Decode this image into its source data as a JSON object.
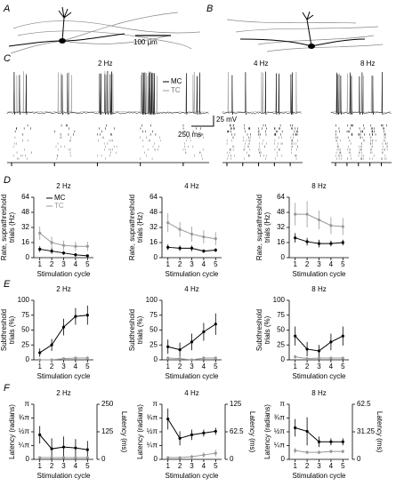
{
  "panel_labels": [
    "A",
    "B",
    "C",
    "D",
    "E",
    "F"
  ],
  "scale_bar_a": "100 μm",
  "panel_c": {
    "titles": [
      "2 Hz",
      "4 Hz",
      "8 Hz"
    ],
    "legend": [
      "MC",
      "TC"
    ],
    "scale_v": "25 mV",
    "scale_t": "250 ms"
  },
  "chart_data": [
    {
      "type": "line",
      "title": "2 Hz",
      "x_label": "Stimulation cycle",
      "y_label": [
        "Rate, suprathreshold",
        "trials (Hz)"
      ],
      "x": [
        1,
        2,
        3,
        4,
        5
      ],
      "xlim": [
        0.5,
        5.5
      ],
      "xticks": [
        1,
        2,
        3,
        4,
        5
      ],
      "ylim": [
        0,
        64
      ],
      "yticks": [
        0,
        16,
        32,
        48,
        64
      ],
      "legend": true,
      "series": [
        {
          "name": "MC",
          "color": "#000000",
          "values": [
            9,
            7,
            5,
            3,
            2
          ],
          "errors": [
            3,
            3,
            2,
            2,
            1
          ]
        },
        {
          "name": "TC",
          "color": "#999999",
          "values": [
            26,
            16,
            13,
            12,
            12
          ],
          "errors": [
            7,
            6,
            5,
            5,
            5
          ]
        }
      ]
    },
    {
      "type": "line",
      "title": "4 Hz",
      "x_label": "Stimulation cycle",
      "y_label": [
        "Rate, suprathreshold",
        "trials (Hz)"
      ],
      "x": [
        1,
        2,
        3,
        4,
        5
      ],
      "xlim": [
        0.5,
        5.5
      ],
      "xticks": [
        1,
        2,
        3,
        4,
        5
      ],
      "ylim": [
        0,
        64
      ],
      "yticks": [
        0,
        16,
        32,
        48,
        64
      ],
      "legend": false,
      "series": [
        {
          "color": "#000000",
          "values": [
            11,
            10,
            10,
            7,
            8
          ],
          "errors": [
            3,
            3,
            3,
            2,
            2
          ]
        },
        {
          "color": "#999999",
          "values": [
            37,
            30,
            25,
            22,
            20
          ],
          "errors": [
            10,
            8,
            8,
            7,
            7
          ]
        }
      ]
    },
    {
      "type": "line",
      "title": "8 Hz",
      "x_label": "Stimulation cycle",
      "y_label": [
        "Rate, suprathreshold",
        "trials (Hz)"
      ],
      "x": [
        1,
        2,
        3,
        4,
        5
      ],
      "xlim": [
        0.5,
        5.5
      ],
      "xticks": [
        1,
        2,
        3,
        4,
        5
      ],
      "ylim": [
        0,
        64
      ],
      "yticks": [
        0,
        16,
        32,
        48,
        64
      ],
      "legend": false,
      "series": [
        {
          "color": "#000000",
          "values": [
            21,
            17,
            15,
            15,
            16
          ],
          "errors": [
            5,
            4,
            4,
            3,
            3
          ]
        },
        {
          "color": "#999999",
          "values": [
            46,
            46,
            40,
            34,
            33
          ],
          "errors": [
            12,
            14,
            10,
            9,
            9
          ]
        }
      ]
    },
    {
      "type": "line",
      "title": "2 Hz",
      "x_label": "Stimulation cycle",
      "y_label": [
        "Subthreshold",
        "trials (%)"
      ],
      "x": [
        1,
        2,
        3,
        4,
        5
      ],
      "xlim": [
        0.5,
        5.5
      ],
      "xticks": [
        1,
        2,
        3,
        4,
        5
      ],
      "ylim": [
        0,
        100
      ],
      "yticks": [
        0,
        25,
        50,
        75,
        100
      ],
      "legend": false,
      "series": [
        {
          "color": "#000000",
          "values": [
            12,
            25,
            55,
            73,
            75
          ],
          "errors": [
            7,
            10,
            14,
            14,
            16
          ]
        },
        {
          "color": "#999999",
          "values": [
            0,
            0,
            2,
            3,
            3
          ],
          "errors": [
            0,
            0,
            2,
            3,
            3
          ]
        }
      ]
    },
    {
      "type": "line",
      "title": "4 Hz",
      "x_label": "Stimulation cycle",
      "y_label": [
        "Subthreshold",
        "trials (%)"
      ],
      "x": [
        1,
        2,
        3,
        4,
        5
      ],
      "xlim": [
        0.5,
        5.5
      ],
      "xticks": [
        1,
        2,
        3,
        4,
        5
      ],
      "ylim": [
        0,
        100
      ],
      "yticks": [
        0,
        25,
        50,
        75,
        100
      ],
      "legend": false,
      "series": [
        {
          "color": "#000000",
          "values": [
            22,
            17,
            30,
            47,
            60
          ],
          "errors": [
            12,
            12,
            14,
            15,
            18
          ]
        },
        {
          "color": "#999999",
          "values": [
            3,
            2,
            0,
            3,
            3
          ],
          "errors": [
            3,
            2,
            0,
            3,
            3
          ]
        }
      ]
    },
    {
      "type": "line",
      "title": "8 Hz",
      "x_label": "Stimulation cycle",
      "y_label": [
        "Subthreshold",
        "trials (%)"
      ],
      "x": [
        1,
        2,
        3,
        4,
        5
      ],
      "xlim": [
        0.5,
        5.5
      ],
      "xticks": [
        1,
        2,
        3,
        4,
        5
      ],
      "ylim": [
        0,
        100
      ],
      "yticks": [
        0,
        25,
        50,
        75,
        100
      ],
      "legend": false,
      "series": [
        {
          "color": "#000000",
          "values": [
            40,
            18,
            15,
            30,
            40
          ],
          "errors": [
            16,
            12,
            10,
            14,
            16
          ]
        },
        {
          "color": "#999999",
          "values": [
            5,
            2,
            3,
            3,
            3
          ],
          "errors": [
            3,
            2,
            2,
            2,
            2
          ]
        }
      ]
    },
    {
      "type": "line",
      "title": "2 Hz",
      "x_label": "Stimulation cycle",
      "y_label": [
        "Latency (radians)"
      ],
      "y2_label": "Latency (ms)",
      "x": [
        1,
        2,
        3,
        4,
        5
      ],
      "xlim": [
        0.5,
        5.5
      ],
      "xticks": [
        1,
        2,
        3,
        4,
        5
      ],
      "ylim": [
        0,
        3.1416
      ],
      "yticks": [
        0,
        {
          "value": 0.7854,
          "label": "¼π"
        },
        {
          "value": 1.5708,
          "label": "½π"
        },
        {
          "value": 2.3562,
          "label": "¾π"
        },
        {
          "value": 3.1416,
          "label": "π"
        }
      ],
      "y2lim": [
        0,
        250
      ],
      "y2ticks": [
        0,
        125,
        250
      ],
      "legend": false,
      "series": [
        {
          "color": "#000000",
          "values": [
            1.4,
            0.6,
            0.7,
            0.65,
            0.55
          ],
          "errors": [
            0.5,
            0.6,
            0.6,
            0.5,
            0.5
          ]
        },
        {
          "color": "#999999",
          "values": [
            0.1,
            0.1,
            0.1,
            0.1,
            0.1
          ],
          "errors": [
            0.05,
            0.05,
            0.05,
            0.05,
            0.05
          ]
        }
      ]
    },
    {
      "type": "line",
      "title": "4 Hz",
      "x_label": "Stimulation cycle",
      "y_label": [
        "Latency (radians)"
      ],
      "y2_label": "Latency (ms)",
      "x": [
        1,
        2,
        3,
        4,
        5
      ],
      "xlim": [
        0.5,
        5.5
      ],
      "xticks": [
        1,
        2,
        3,
        4,
        5
      ],
      "ylim": [
        0,
        3.1416
      ],
      "yticks": [
        0,
        {
          "value": 0.7854,
          "label": "¼π"
        },
        {
          "value": 1.5708,
          "label": "½π"
        },
        {
          "value": 2.3562,
          "label": "¾π"
        },
        {
          "value": 3.1416,
          "label": "π"
        }
      ],
      "y2lim": [
        0,
        125
      ],
      "y2ticks": [
        0,
        62.5,
        125
      ],
      "legend": false,
      "series": [
        {
          "color": "#000000",
          "values": [
            2.3,
            1.2,
            1.4,
            1.5,
            1.6
          ],
          "errors": [
            0.6,
            0.4,
            0.3,
            0.2,
            0.2
          ]
        },
        {
          "color": "#999999",
          "values": [
            0.1,
            0.1,
            0.15,
            0.25,
            0.35
          ],
          "errors": [
            0.05,
            0.05,
            0.1,
            0.15,
            0.2
          ]
        }
      ]
    },
    {
      "type": "line",
      "title": "8 Hz",
      "x_label": "Stimulation cycle",
      "y_label": [
        "Latency (radians)"
      ],
      "y2_label": "Latency (ms)",
      "x": [
        1,
        2,
        3,
        4,
        5
      ],
      "xlim": [
        0.5,
        5.5
      ],
      "xticks": [
        1,
        2,
        3,
        4,
        5
      ],
      "ylim": [
        0,
        3.1416
      ],
      "yticks": [
        0,
        {
          "value": 0.7854,
          "label": "¼π"
        },
        {
          "value": 1.5708,
          "label": "½π"
        },
        {
          "value": 2.3562,
          "label": "¾π"
        },
        {
          "value": 3.1416,
          "label": "π"
        }
      ],
      "y2lim": [
        0,
        62.5
      ],
      "y2ticks": [
        0,
        31.25,
        62.5
      ],
      "legend": false,
      "series": [
        {
          "color": "#000000",
          "values": [
            1.8,
            1.6,
            1.0,
            1.0,
            1.0
          ],
          "errors": [
            0.5,
            0.8,
            0.3,
            0.2,
            0.2
          ]
        },
        {
          "color": "#999999",
          "values": [
            0.5,
            0.4,
            0.4,
            0.45,
            0.45
          ],
          "errors": [
            0.15,
            0.1,
            0.1,
            0.1,
            0.1
          ]
        }
      ]
    }
  ]
}
